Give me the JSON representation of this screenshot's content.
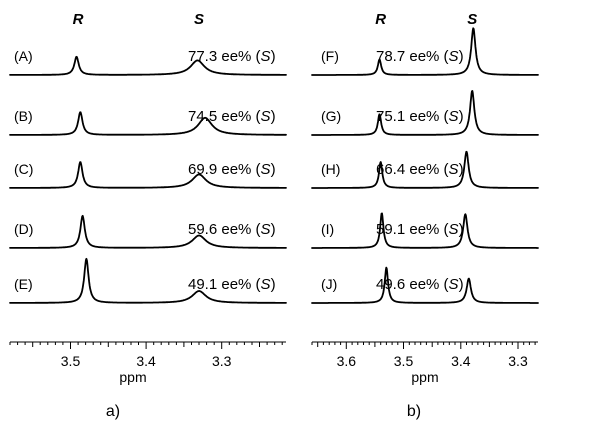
{
  "chart_data": [
    {
      "type": "line",
      "panel_label": "a)",
      "peak_labels": [
        "R",
        "S"
      ],
      "xlabel": "ppm",
      "xlim": [
        3.58,
        3.215
      ],
      "x_reversed": true,
      "xticks": [
        {
          "v": 3.5,
          "t": "3.5"
        },
        {
          "v": 3.4,
          "t": "3.4"
        },
        {
          "v": 3.3,
          "t": "3.3"
        }
      ],
      "minor_step": 0.01,
      "peak_positions": {
        "R": 3.49,
        "S": 3.33
      },
      "series": [
        {
          "name": "(A)",
          "ee": "77.3 ee% (",
          "config": "S",
          "peaks": [
            {
              "x": 3.492,
              "h": 0.35,
              "w": 0.0035
            },
            {
              "x": 3.332,
              "h": 0.28,
              "w": 0.011
            }
          ]
        },
        {
          "name": "(B)",
          "ee": "74.5 ee% (",
          "config": "S",
          "peaks": [
            {
              "x": 3.487,
              "h": 0.44,
              "w": 0.0035
            },
            {
              "x": 3.322,
              "h": 0.33,
              "w": 0.011
            }
          ]
        },
        {
          "name": "(C)",
          "ee": "69.9 ee% (",
          "config": "S",
          "peaks": [
            {
              "x": 3.487,
              "h": 0.5,
              "w": 0.0035
            },
            {
              "x": 3.33,
              "h": 0.26,
              "w": 0.011
            }
          ]
        },
        {
          "name": "(D)",
          "ee": "59.6 ee% (",
          "config": "S",
          "peaks": [
            {
              "x": 3.484,
              "h": 0.62,
              "w": 0.0035
            },
            {
              "x": 3.33,
              "h": 0.24,
              "w": 0.011
            }
          ]
        },
        {
          "name": "(E)",
          "ee": "49.1 ee% (",
          "config": "S",
          "peaks": [
            {
              "x": 3.479,
              "h": 0.85,
              "w": 0.0035
            },
            {
              "x": 3.33,
              "h": 0.23,
              "w": 0.011
            }
          ]
        }
      ]
    },
    {
      "type": "line",
      "panel_label": "b)",
      "peak_labels": [
        "R",
        "S"
      ],
      "xlabel": "ppm",
      "xlim": [
        3.66,
        3.265
      ],
      "x_reversed": true,
      "xticks": [
        {
          "v": 3.6,
          "t": "3.6"
        },
        {
          "v": 3.5,
          "t": "3.5"
        },
        {
          "v": 3.4,
          "t": "3.4"
        },
        {
          "v": 3.3,
          "t": "3.3"
        }
      ],
      "minor_step": 0.01,
      "peak_positions": {
        "R": 3.54,
        "S": 3.38
      },
      "series": [
        {
          "name": "(F)",
          "ee": "78.7 ee% (",
          "config": "S",
          "peaks": [
            {
              "x": 3.542,
              "h": 0.3,
              "w": 0.0035
            },
            {
              "x": 3.378,
              "h": 0.9,
              "w": 0.0045
            }
          ]
        },
        {
          "name": "(G)",
          "ee": "75.1 ee% (",
          "config": "S",
          "peaks": [
            {
              "x": 3.542,
              "h": 0.4,
              "w": 0.0035
            },
            {
              "x": 3.38,
              "h": 0.85,
              "w": 0.0045
            }
          ]
        },
        {
          "name": "(H)",
          "ee": "66.4 ee% (",
          "config": "S",
          "peaks": [
            {
              "x": 3.54,
              "h": 0.5,
              "w": 0.0035
            },
            {
              "x": 3.39,
              "h": 0.7,
              "w": 0.0045
            }
          ]
        },
        {
          "name": "(I)",
          "ee": "59.1 ee% (",
          "config": "S",
          "peaks": [
            {
              "x": 3.538,
              "h": 0.67,
              "w": 0.0035
            },
            {
              "x": 3.392,
              "h": 0.65,
              "w": 0.0045
            }
          ]
        },
        {
          "name": "(J)",
          "ee": "49.6 ee% (",
          "config": "S",
          "peaks": [
            {
              "x": 3.53,
              "h": 0.68,
              "w": 0.0035
            },
            {
              "x": 3.386,
              "h": 0.47,
              "w": 0.0045
            }
          ]
        }
      ]
    }
  ]
}
